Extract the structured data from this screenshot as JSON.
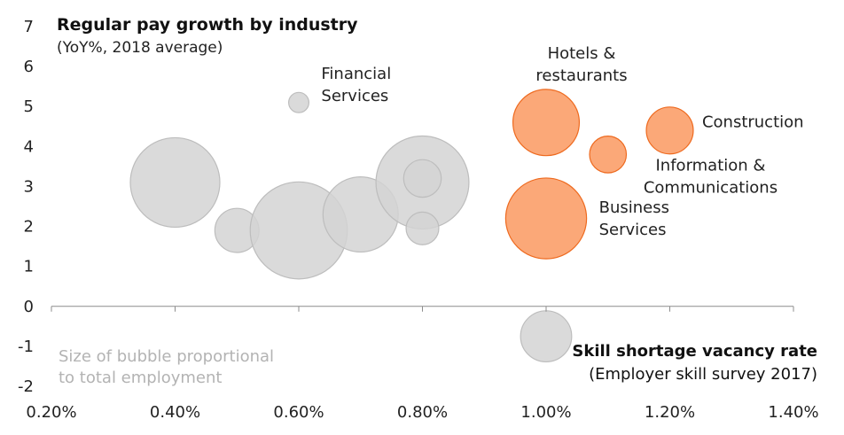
{
  "chart_data": {
    "type": "scatter",
    "title": "Regular pay growth by industry",
    "subtitle": "(YoY%, 2018 average)",
    "xlabel": "Skill shortage vacancy rate",
    "xlabel_sub": "(Employer skill survey 2017)",
    "note_line1": "Size of bubble proportional",
    "note_line2": "to total employment",
    "xlim": [
      0.002,
      0.014
    ],
    "ylim": [
      -2,
      7
    ],
    "x_ticks": [
      "0.20%",
      "0.40%",
      "0.60%",
      "0.80%",
      "1.00%",
      "1.20%",
      "1.40%"
    ],
    "y_ticks": [
      "7",
      "6",
      "5",
      "4",
      "3",
      "2",
      "1",
      "0",
      "-1",
      "-2"
    ],
    "colors": {
      "grey_fill": "#d3d3d3",
      "grey_stroke": "#bdbdbd",
      "orange_fill": "#fba878",
      "orange_stroke": "#ee6a1f"
    },
    "points": [
      {
        "x": 0.004,
        "y": 3.1,
        "size": 2550,
        "highlight": false,
        "label": ""
      },
      {
        "x": 0.005,
        "y": 1.9,
        "size": 620,
        "highlight": false,
        "label": ""
      },
      {
        "x": 0.006,
        "y": 5.1,
        "size": 130,
        "highlight": false,
        "label": "Financial\nServices"
      },
      {
        "x": 0.006,
        "y": 1.9,
        "size": 3000,
        "highlight": false,
        "label": ""
      },
      {
        "x": 0.007,
        "y": 2.3,
        "size": 1800,
        "highlight": false,
        "label": ""
      },
      {
        "x": 0.008,
        "y": 3.1,
        "size": 2750,
        "highlight": false,
        "label": ""
      },
      {
        "x": 0.008,
        "y": 3.2,
        "size": 450,
        "highlight": false,
        "label": ""
      },
      {
        "x": 0.008,
        "y": 1.95,
        "size": 340,
        "highlight": false,
        "label": ""
      },
      {
        "x": 0.01,
        "y": -0.75,
        "size": 830,
        "highlight": false,
        "label": ""
      },
      {
        "x": 0.01,
        "y": 4.6,
        "size": 1400,
        "highlight": true,
        "label": "Hotels &\nrestaurants"
      },
      {
        "x": 0.01,
        "y": 2.2,
        "size": 2080,
        "highlight": true,
        "label": "Business\nServices"
      },
      {
        "x": 0.011,
        "y": 3.8,
        "size": 430,
        "highlight": true,
        "label": "Information &\nCommunications"
      },
      {
        "x": 0.012,
        "y": 4.4,
        "size": 700,
        "highlight": true,
        "label": "Construction"
      }
    ]
  }
}
